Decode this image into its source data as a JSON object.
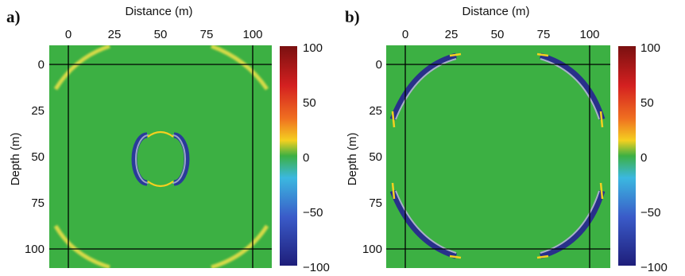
{
  "panels": [
    {
      "letter": "a)",
      "x_title": "Distance (m)",
      "y_title": "Depth (m)",
      "x_ticks": [
        "0",
        "25",
        "50",
        "75",
        "100"
      ],
      "y_ticks": [
        "0",
        "25",
        "50",
        "75",
        "100"
      ],
      "colorbar_ticks": [
        "100",
        "50",
        "0",
        "−50",
        "−100"
      ]
    },
    {
      "letter": "b)",
      "x_title": "Distance (m)",
      "y_title": "Depth (m)",
      "x_ticks": [
        "0",
        "25",
        "50",
        "75",
        "100"
      ],
      "y_ticks": [
        "0",
        "25",
        "50",
        "75",
        "100"
      ],
      "colorbar_ticks": [
        "100",
        "50",
        "0",
        "−50",
        "−100"
      ]
    }
  ],
  "colorbar": {
    "max": 100,
    "min": -100,
    "colors": [
      "#7a1010",
      "#d42020",
      "#f07020",
      "#f4d020",
      "#3cb043",
      "#3bb8e0",
      "#3a5ac8",
      "#1e1e7a"
    ]
  },
  "field_color": "#3cb043"
}
